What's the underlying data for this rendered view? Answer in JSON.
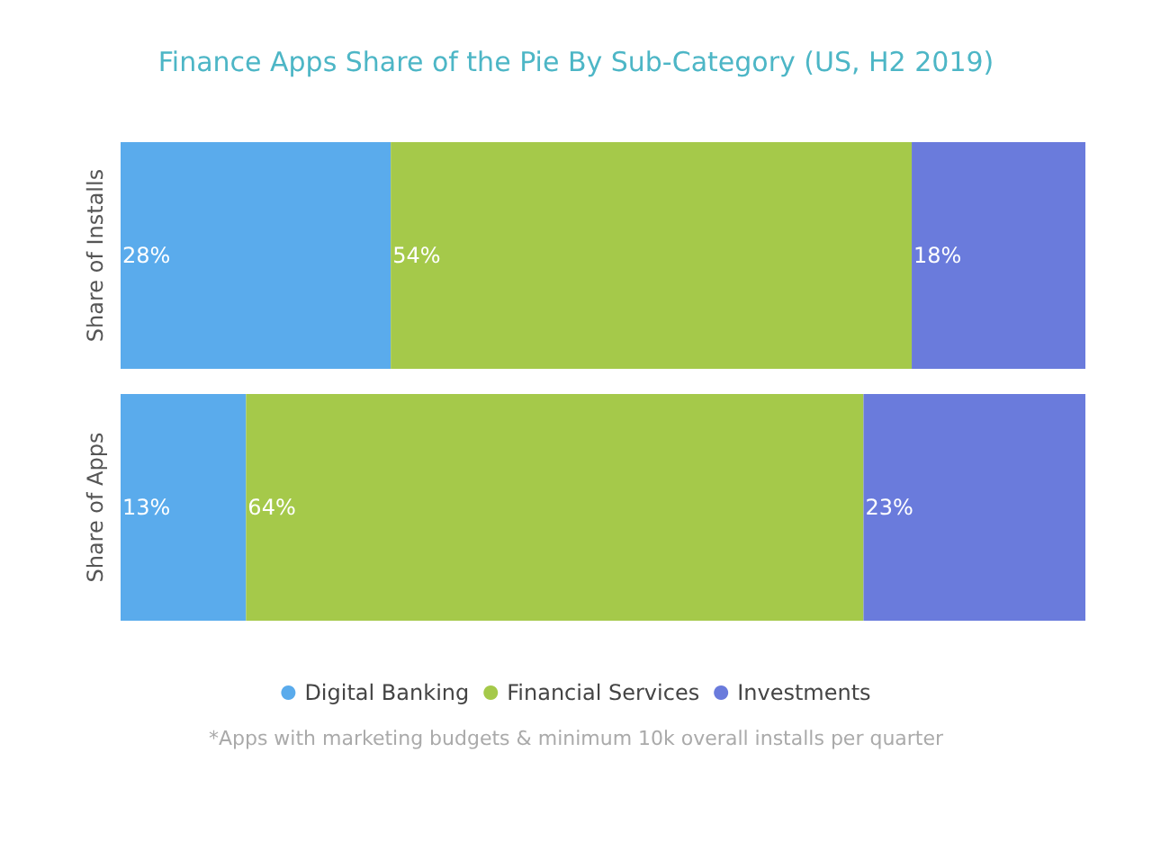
{
  "chart_data": {
    "type": "bar",
    "orientation": "horizontal",
    "stacked": true,
    "title": "Finance Apps Share of the Pie By Sub-Category (US, H2 2019)",
    "categories": [
      "Share of Installs",
      "Share of Apps"
    ],
    "series": [
      {
        "name": "Digital Banking",
        "color": "#5aabec",
        "values": [
          28,
          13
        ],
        "value_labels": [
          "28%",
          "13%"
        ]
      },
      {
        "name": "Financial Services",
        "color": "#a5c94a",
        "values": [
          54,
          64
        ],
        "value_labels": [
          "54%",
          "64%"
        ]
      },
      {
        "name": "Investments",
        "color": "#6a7bdc",
        "values": [
          18,
          23
        ],
        "value_labels": [
          "18%",
          "23%"
        ]
      }
    ],
    "xlim": [
      0,
      100
    ],
    "tick_labels": "y",
    "grid": false,
    "legend": "bottom",
    "annotations": [
      "*Apps with marketing budgets & minimum 10k overall installs per quarter"
    ]
  }
}
